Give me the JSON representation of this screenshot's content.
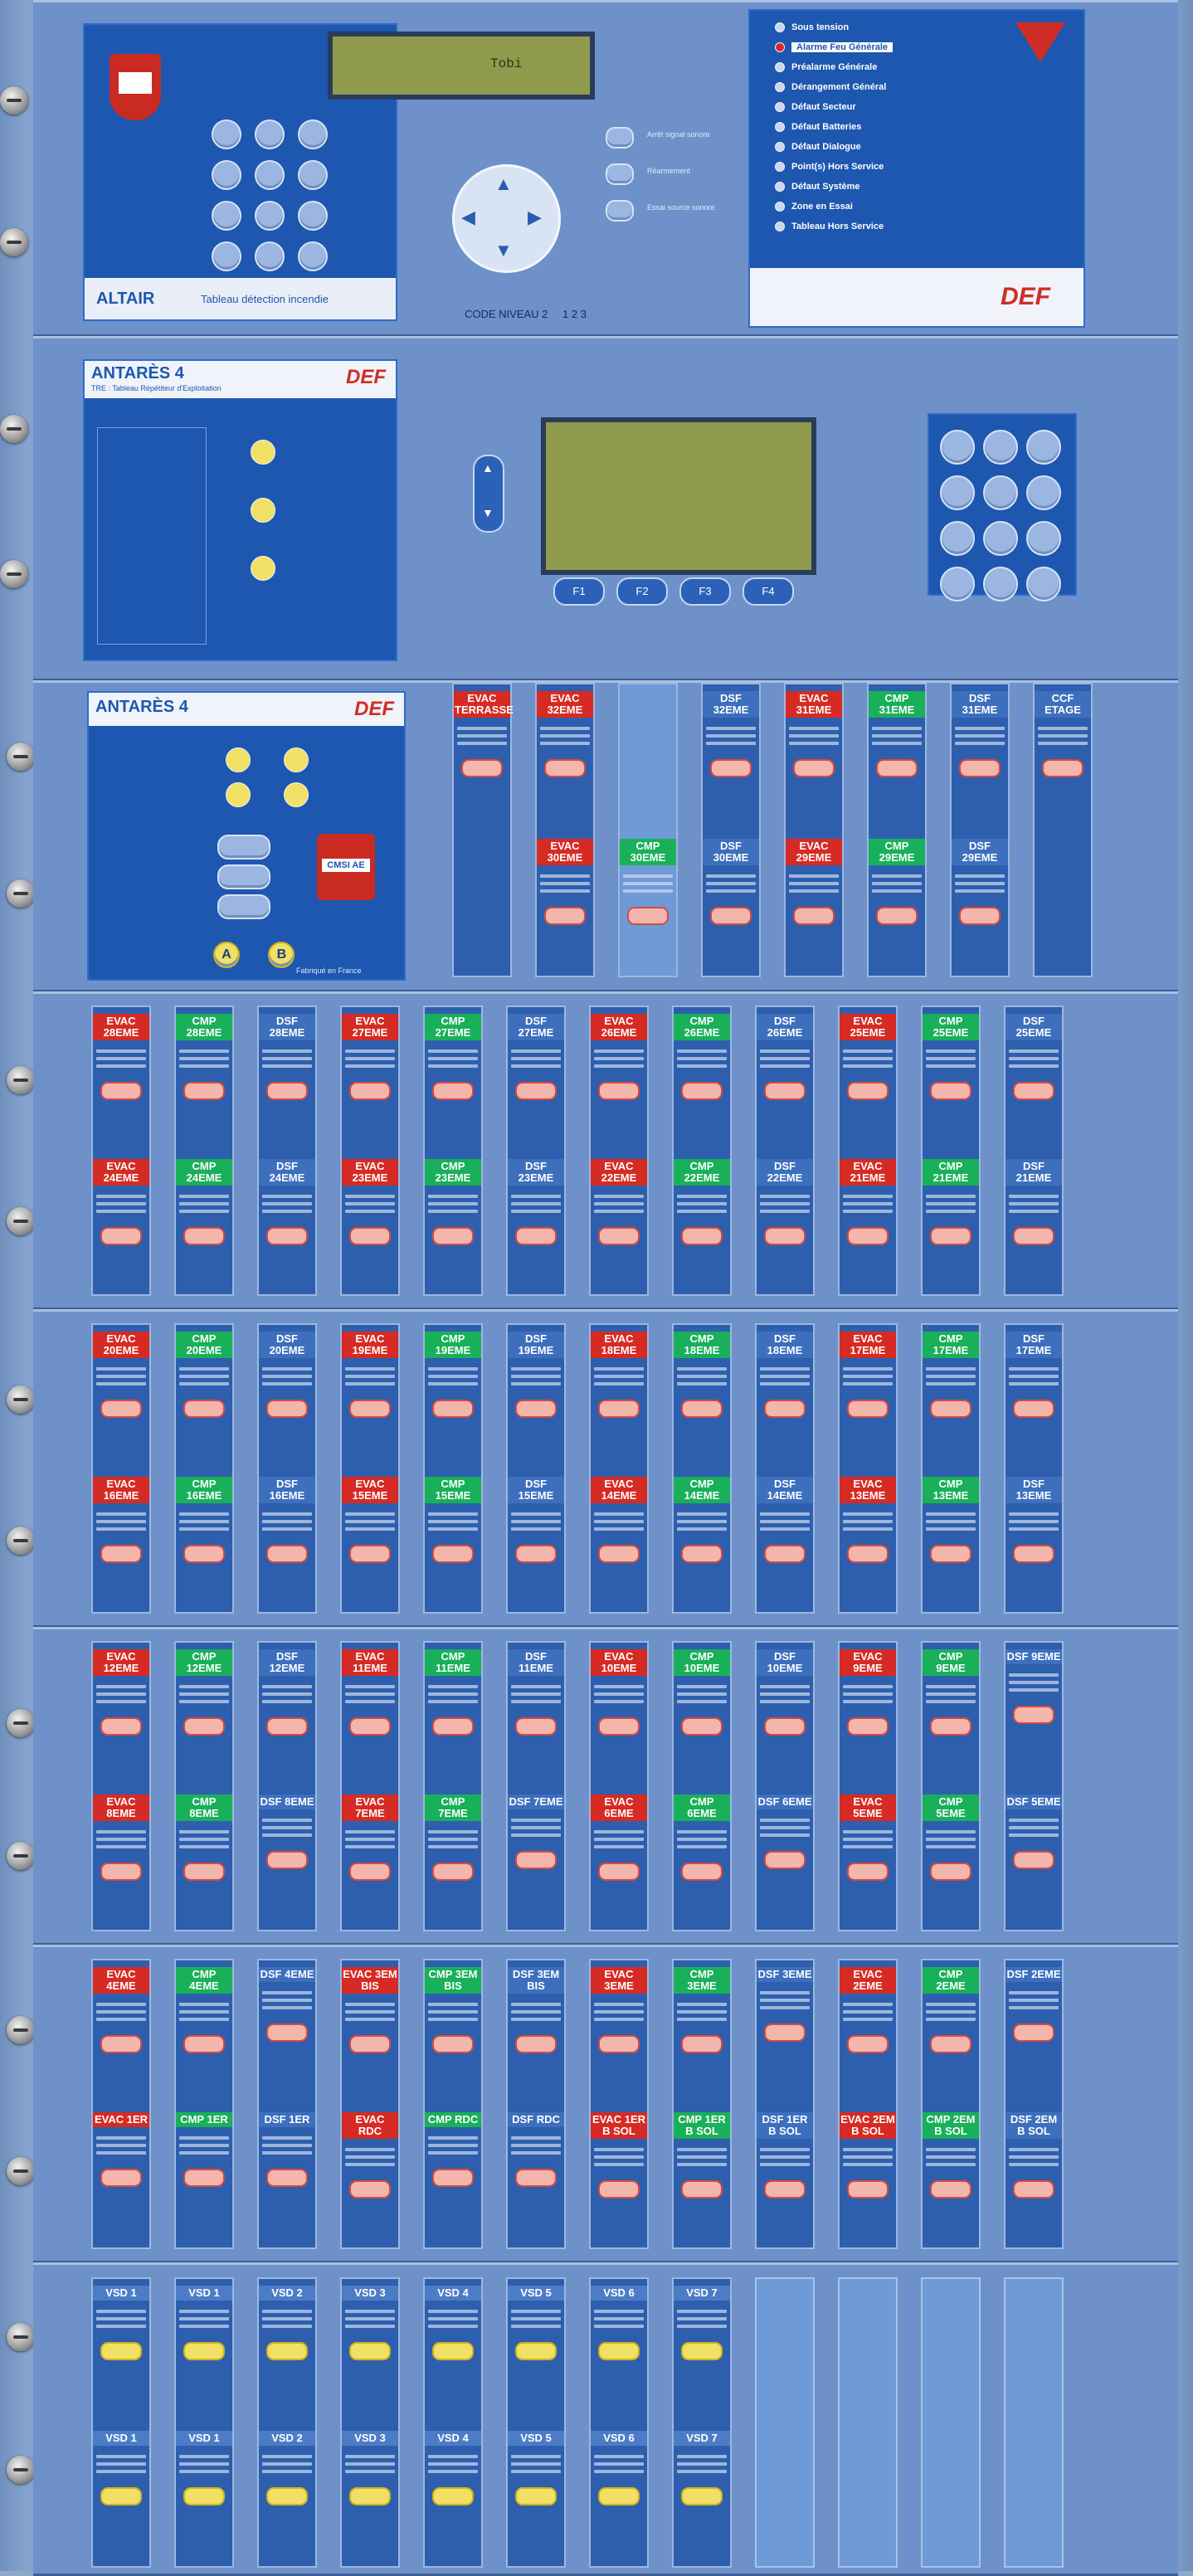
{
  "altair": {
    "model": "ALTAIR",
    "subtitle": "Tableau détection incendie",
    "code_level": "CODE NIVEAU 2",
    "code_value": "1 2 3",
    "lcd_line1": "Tobi",
    "status_items": [
      "Sous tension",
      "Alarme Feu Générale",
      "Préalarme Générale",
      "Dérangement Général",
      "Défaut Secteur",
      "Défaut Batteries",
      "Défaut Dialogue",
      "Point(s) Hors Service",
      "Défaut Système",
      "Zone en Essai",
      "Tableau Hors Service"
    ],
    "buttons": [
      "Arrêt signal sonore",
      "Réarmement",
      "Essai source sonore"
    ],
    "brand": "DEF"
  },
  "antares1": {
    "title": "ANTARÈS 4",
    "subtitle": "TRE : Tableau Répétiteur d'Exploitation",
    "brand": "DEF",
    "fkeys": [
      "F1",
      "F2",
      "F3",
      "F4"
    ]
  },
  "antares2": {
    "title": "ANTARÈS 4",
    "brand": "DEF",
    "cmsi": "CMSI AE",
    "round_buttons": [
      "A",
      "B"
    ],
    "footer": "Fabriqué en France"
  },
  "row1_modules": [
    {
      "type": "evac",
      "top": "EVAC TERRASSE",
      "bottom": ""
    },
    {
      "type": "evac",
      "top": "EVAC 32EME",
      "bottom": "EVAC 30EME"
    },
    {
      "type": "blank",
      "top": "",
      "bottom": ""
    },
    {
      "type": "dsf",
      "top": "DSF 32EME",
      "bottom": "DSF 30EME"
    },
    {
      "type": "evac",
      "top": "EVAC 31EME",
      "bottom": "EVAC 29EME"
    },
    {
      "type": "cmp",
      "top": "CMP 31EME",
      "bottom": "CMP 29EME"
    },
    {
      "type": "dsf",
      "top": "DSF 31EME",
      "bottom": "DSF 29EME"
    },
    {
      "type": "dsf",
      "top": "CCF ETAGE",
      "bottom": ""
    }
  ],
  "row1_extra": {
    "cmp_bottom": "CMP 30EME"
  },
  "rows": [
    [
      "EVAC 28EME|EVAC 24EME",
      "CMP 28EME|CMP 24EME",
      "DSF 28EME|DSF 24EME",
      "EVAC 27EME|EVAC 23EME",
      "CMP 27EME|CMP 23EME",
      "DSF 27EME|DSF 23EME",
      "EVAC 26EME|EVAC 22EME",
      "CMP 26EME|CMP 22EME",
      "DSF 26EME|DSF 22EME",
      "EVAC 25EME|EVAC 21EME",
      "CMP 25EME|CMP 21EME",
      "DSF 25EME|DSF 21EME"
    ],
    [
      "EVAC 20EME|EVAC 16EME",
      "CMP 20EME|CMP 16EME",
      "DSF 20EME|DSF 16EME",
      "EVAC 19EME|EVAC 15EME",
      "CMP 19EME|CMP 15EME",
      "DSF 19EME|DSF 15EME",
      "EVAC 18EME|EVAC 14EME",
      "CMP 18EME|CMP 14EME",
      "DSF 18EME|DSF 14EME",
      "EVAC 17EME|EVAC 13EME",
      "CMP 17EME|CMP 13EME",
      "DSF 17EME|DSF 13EME"
    ],
    [
      "EVAC 12EME|EVAC 8EME",
      "CMP 12EME|CMP 8EME",
      "DSF 12EME|DSF 8EME",
      "EVAC 11EME|EVAC 7EME",
      "CMP 11EME|CMP 7EME",
      "DSF 11EME|DSF 7EME",
      "EVAC 10EME|EVAC 6EME",
      "CMP 10EME|CMP 6EME",
      "DSF 10EME|DSF 6EME",
      "EVAC 9EME|EVAC 5EME",
      "CMP 9EME|CMP 5EME",
      "DSF 9EME|DSF 5EME"
    ],
    [
      "EVAC 4EME|EVAC 1ER",
      "CMP 4EME|CMP 1ER",
      "DSF 4EME|DSF 1ER",
      "EVAC 3EM BIS|EVAC RDC",
      "CMP 3EM BIS|CMP RDC",
      "DSF 3EM BIS|DSF RDC",
      "EVAC 3EME|EVAC 1ER B SOL",
      "CMP 3EME|CMP 1ER B SOL",
      "DSF 3EME|DSF 1ER B SOL",
      "EVAC 2EME|EVAC 2EM B SOL",
      "CMP 2EME|CMP 2EM B SOL",
      "DSF 2EME|DSF 2EM B SOL"
    ]
  ],
  "vsd_row": [
    "VSD 1",
    "VSD 1",
    "VSD 2",
    "VSD 3",
    "VSD 4",
    "VSD 5",
    "VSD 6",
    "VSD 7"
  ]
}
